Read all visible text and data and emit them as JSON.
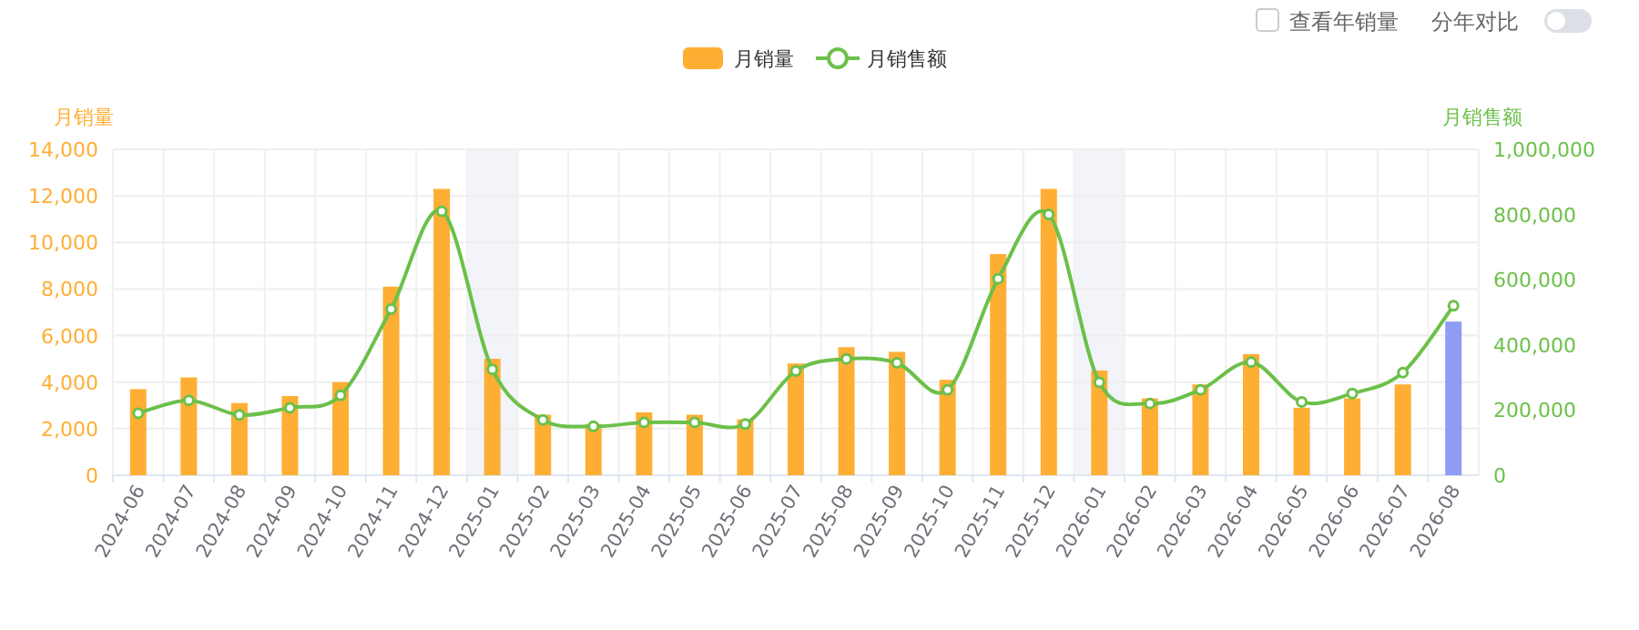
{
  "chart_data": {
    "type": "bar",
    "ylabel": "月销量",
    "y2label": "月销售额",
    "categories": [
      "2024-06",
      "2024-07",
      "2024-08",
      "2024-09",
      "2024-10",
      "2024-11",
      "2024-12",
      "2025-01",
      "2025-02",
      "2025-03",
      "2025-04",
      "2025-05",
      "2025-06",
      "2025-07",
      "2025-08",
      "2025-09",
      "2025-10",
      "2025-11",
      "2025-12",
      "2026-01",
      "2026-02",
      "2026-03",
      "2026-04",
      "2026-05",
      "2026-06",
      "2026-07",
      "2026-08"
    ],
    "series": [
      {
        "name": "月销量",
        "color": "#ffae34",
        "colors": [
          "#ffae34",
          "#ffae34",
          "#ffae34",
          "#ffae34",
          "#ffae34",
          "#ffae34",
          "#ffae34",
          "#ffae34",
          "#ffae34",
          "#ffae34",
          "#ffae34",
          "#ffae34",
          "#ffae34",
          "#ffae34",
          "#ffae34",
          "#ffae34",
          "#ffae34",
          "#ffae34",
          "#ffae34",
          "#ffae34",
          "#ffae34",
          "#ffae34",
          "#ffae34",
          "#ffae34",
          "#ffae34",
          "#ffae34",
          "#8e9cf3"
        ],
        "values": [
          3700,
          4200,
          3100,
          3400,
          4000,
          8100,
          12300,
          5000,
          2600,
          2200,
          2700,
          2600,
          2400,
          4800,
          5500,
          5300,
          4100,
          9500,
          12300,
          4500,
          3300,
          3900,
          5200,
          2900,
          3300,
          3900,
          6600
        ]
      },
      {
        "name": "月销售额",
        "type": "line",
        "axis": "y2",
        "color": "#6cc04a",
        "marker": "circle",
        "values": [
          190000,
          230000,
          185000,
          207000,
          245000,
          510000,
          810000,
          325000,
          170000,
          150000,
          162000,
          162000,
          157000,
          320000,
          357000,
          345000,
          262000,
          603000,
          800000,
          285000,
          220000,
          262000,
          347000,
          225000,
          251000,
          315000,
          520000
        ]
      }
    ],
    "ylim": [
      0,
      14000
    ],
    "yticks": [
      0,
      {
        "value": 2000,
        "label": "2,000"
      },
      {
        "value": 4000,
        "label": "4,000"
      },
      {
        "value": 6000,
        "label": "6,000"
      },
      {
        "value": 8000,
        "label": "8,000"
      },
      {
        "value": 10000,
        "label": "10,000"
      },
      {
        "value": 12000,
        "label": "12,000"
      },
      {
        "value": 14000,
        "label": "14,000"
      }
    ],
    "y2lim": [
      0,
      1000000
    ],
    "y2ticks": [
      0,
      {
        "value": 200000,
        "label": "200,000"
      },
      {
        "value": 400000,
        "label": "400,000"
      },
      {
        "value": 600000,
        "label": "600,000"
      },
      {
        "value": 800000,
        "label": "800,000"
      },
      {
        "value": 1000000,
        "label": "1,000,000"
      }
    ],
    "bands": [
      {
        "axis": "x",
        "from": "2025-01",
        "to": "2025-01",
        "color": "#f2f4f9"
      },
      {
        "axis": "x",
        "from": "2026-01",
        "to": "2026-01",
        "color": "#f2f4f9"
      }
    ],
    "grid": true,
    "legend": "top",
    "annotations": [
      "查看年销量",
      "分年对比"
    ]
  }
}
